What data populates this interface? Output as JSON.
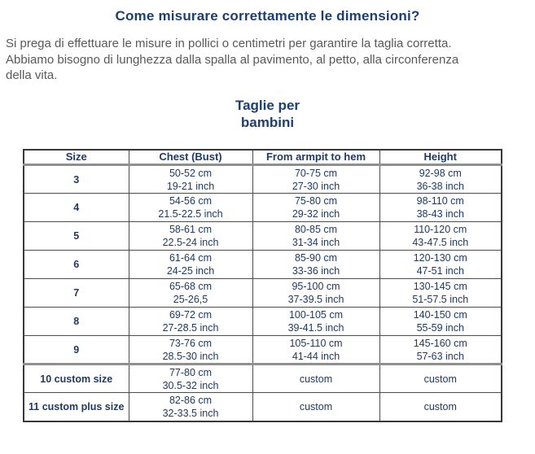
{
  "page": {
    "title": "Come misurare correttamente le dimensioni?",
    "intro": "Si prega di effettuare le misure in pollici o centimetri per garantire la taglia corretta.\nAbbiamo bisogno di lunghezza dalla spalla al pavimento, al petto, alla circonferenza\ndella vita.",
    "subtitle": "Taglie per\nbambini"
  },
  "colors": {
    "heading_navy": "#1d3e73",
    "body_gray": "#59585a",
    "table_text_navy": "#1f3a66",
    "table_border_dark": "#4c4c4c",
    "table_separator_gray": "#8f8f8f",
    "background": "#ffffff"
  },
  "table": {
    "headers": [
      "Size",
      "Chest (Bust)",
      "From armpit to hem",
      "Height"
    ],
    "rows": [
      {
        "size": "3",
        "separator_above": false,
        "cells": [
          [
            "50-52 cm",
            "19-21 inch"
          ],
          [
            "70-75 cm",
            "27-30 inch"
          ],
          [
            "92-98 cm",
            "36-38 inch"
          ]
        ]
      },
      {
        "size": "4",
        "separator_above": false,
        "cells": [
          [
            "54-56 cm",
            "21.5-22.5 inch"
          ],
          [
            "75-80 cm",
            "29-32 inch"
          ],
          [
            "98-110 cm",
            "38-43 inch"
          ]
        ]
      },
      {
        "size": "5",
        "separator_above": false,
        "cells": [
          [
            "58-61 cm",
            "22.5-24 inch"
          ],
          [
            "80-85 cm",
            "31-34 inch"
          ],
          [
            "110-120 cm",
            "43-47.5 inch"
          ]
        ]
      },
      {
        "size": "6",
        "separator_above": false,
        "cells": [
          [
            "61-64 cm",
            "24-25 inch"
          ],
          [
            "85-90 cm",
            "33-36 inch"
          ],
          [
            "120-130 cm",
            "47-51 inch"
          ]
        ]
      },
      {
        "size": "7",
        "separator_above": false,
        "cells": [
          [
            "65-68 cm",
            "25-26,5"
          ],
          [
            "95-100 cm",
            "37-39.5 inch"
          ],
          [
            "130-145 cm",
            "51-57.5 inch"
          ]
        ]
      },
      {
        "size": "8",
        "separator_above": false,
        "cells": [
          [
            "69-72 cm",
            "27-28.5 inch"
          ],
          [
            "100-105 cm",
            "39-41.5 inch"
          ],
          [
            "140-150 cm",
            "55-59 inch"
          ]
        ]
      },
      {
        "size": "9",
        "separator_above": false,
        "cells": [
          [
            "73-76 cm",
            "28.5-30 inch"
          ],
          [
            "105-110 cm",
            "41-44 inch"
          ],
          [
            "145-160 cm",
            "57-63 inch"
          ]
        ]
      },
      {
        "size": "10 custom size",
        "separator_above": true,
        "cells": [
          [
            "77-80 cm",
            "30.5-32 inch"
          ],
          [
            "custom"
          ],
          [
            "custom"
          ]
        ]
      },
      {
        "size": "11 custom plus size",
        "separator_above": false,
        "cells": [
          [
            "82-86 cm",
            "32-33.5 inch"
          ],
          [
            "custom"
          ],
          [
            "custom"
          ]
        ]
      }
    ]
  }
}
